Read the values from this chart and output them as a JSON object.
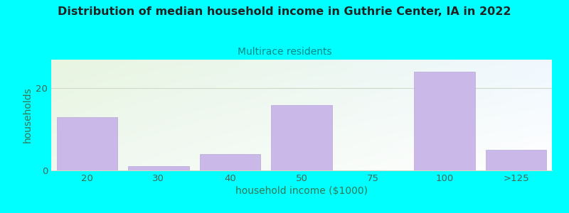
{
  "title": "Distribution of median household income in Guthrie Center, IA in 2022",
  "subtitle": "Multirace residents",
  "xlabel": "household income ($1000)",
  "ylabel": "households",
  "categories": [
    "20",
    "30",
    "40",
    "50",
    "75",
    "100",
    ">125"
  ],
  "values": [
    13,
    1,
    4,
    16,
    0,
    24,
    5
  ],
  "bar_color": "#c9b8e8",
  "bar_edgecolor": "#b8a8d8",
  "background_outer": "#00ffff",
  "bg_top_color": "#e8f5e0",
  "bg_bottom_color": "#f8fff8",
  "bg_right_color": "#f0f8ff",
  "title_fontsize": 11.5,
  "subtitle_fontsize": 10,
  "subtitle_color": "#008888",
  "ylabel_color": "#337755",
  "xlabel_color": "#337755",
  "tick_color": "#446655",
  "ylim": [
    0,
    27
  ],
  "yticks": [
    0,
    20
  ],
  "bar_width": 0.85,
  "gridline_color": "#d0d8c8",
  "axis_bottom_color": "#d0d8c8"
}
